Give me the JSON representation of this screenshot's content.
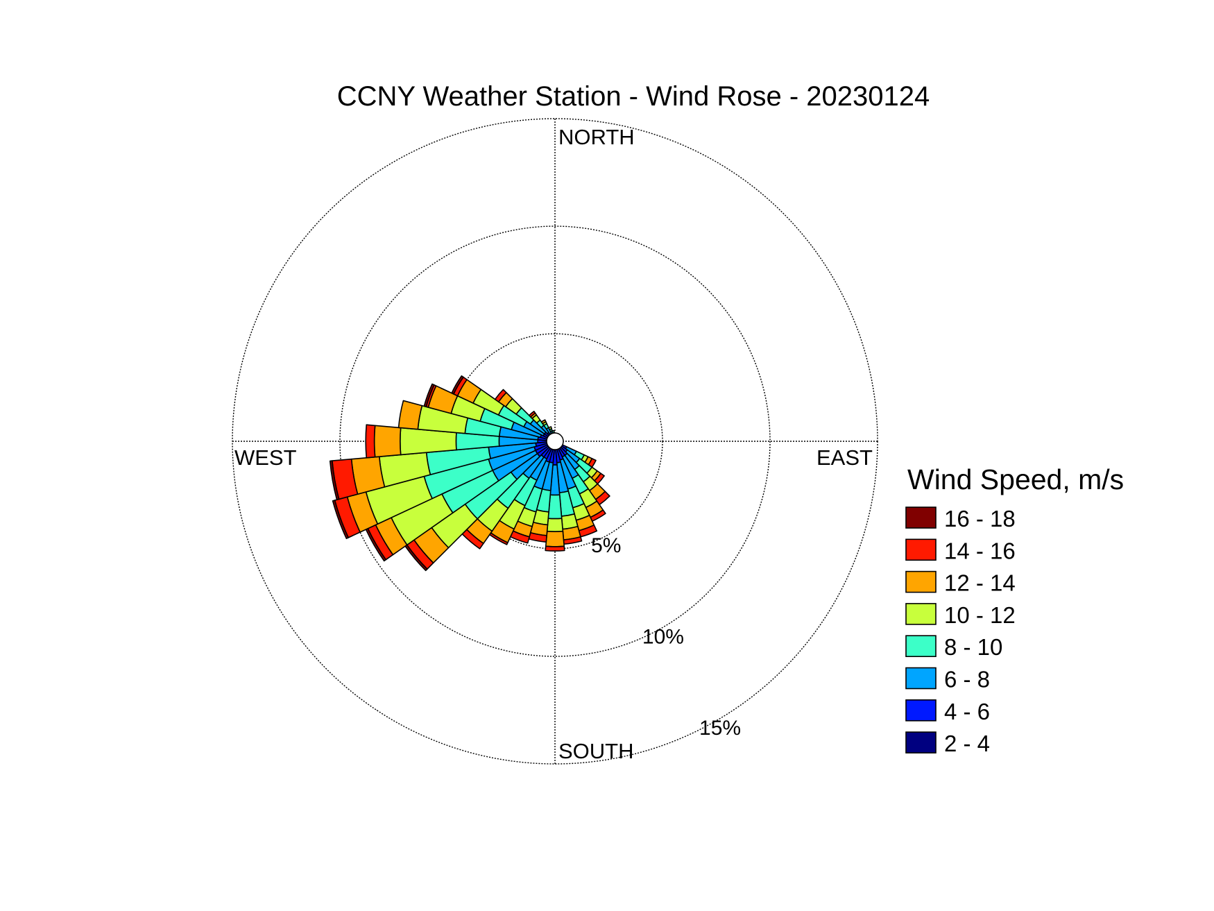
{
  "chart_data": {
    "type": "wind_rose",
    "title": "CCNY Weather Station - Wind Rose - 20230124",
    "direction_labels": {
      "north": "NORTH",
      "east": "EAST",
      "south": "SOUTH",
      "west": "WEST"
    },
    "radial_unit": "%",
    "radial_max": 15,
    "rings": [
      {
        "value": 5,
        "label": "5%"
      },
      {
        "value": 10,
        "label": "10%"
      },
      {
        "value": 15,
        "label": "15%"
      }
    ],
    "grid": true,
    "legend": {
      "title": "Wind Speed, m/s",
      "placement": "right",
      "bins": [
        {
          "label": "16 - 18",
          "color": "#800000"
        },
        {
          "label": "14 - 16",
          "color": "#ff1a00"
        },
        {
          "label": "12 - 14",
          "color": "#ffa500"
        },
        {
          "label": "10 - 12",
          "color": "#c8ff3c"
        },
        {
          "label": "8 - 10",
          "color": "#3cffc8"
        },
        {
          "label": "6 - 8",
          "color": "#00a5ff"
        },
        {
          "label": "4 - 6",
          "color": "#0019ff"
        },
        {
          "label": "2 - 4",
          "color": "#000080"
        }
      ]
    },
    "speed_bins_low_to_high": [
      "2 - 4",
      "4 - 6",
      "6 - 8",
      "8 - 10",
      "10 - 12",
      "12 - 14",
      "14 - 16",
      "16 - 18"
    ],
    "sector_width_deg": 10,
    "sectors": [
      {
        "direction_deg": 120,
        "cumulative_pct": [
          0.3,
          0.6,
          1.1,
          1.5,
          1.7,
          1.9,
          2.1,
          2.1
        ]
      },
      {
        "direction_deg": 130,
        "cumulative_pct": [
          0.3,
          0.7,
          1.4,
          2.1,
          2.4,
          2.6,
          2.8,
          2.8
        ]
      },
      {
        "direction_deg": 140,
        "cumulative_pct": [
          0.3,
          0.8,
          1.6,
          2.3,
          2.8,
          3.3,
          3.6,
          3.6
        ]
      },
      {
        "direction_deg": 150,
        "cumulative_pct": [
          0.3,
          0.8,
          1.9,
          2.7,
          3.4,
          3.9,
          4.1,
          4.1
        ]
      },
      {
        "direction_deg": 160,
        "cumulative_pct": [
          0.3,
          0.9,
          2.3,
          3.2,
          3.8,
          4.3,
          4.6,
          4.6
        ]
      },
      {
        "direction_deg": 170,
        "cumulative_pct": [
          0.3,
          1.0,
          2.4,
          3.5,
          4.1,
          4.6,
          4.8,
          4.8
        ]
      },
      {
        "direction_deg": 180,
        "cumulative_pct": [
          0.3,
          1.1,
          2.5,
          3.6,
          4.2,
          4.9,
          5.1,
          5.1
        ]
      },
      {
        "direction_deg": 190,
        "cumulative_pct": [
          0.3,
          1.0,
          2.3,
          3.3,
          3.9,
          4.4,
          4.7,
          4.7
        ]
      },
      {
        "direction_deg": 200,
        "cumulative_pct": [
          0.3,
          1.0,
          2.3,
          3.4,
          4.1,
          4.6,
          4.9,
          4.9
        ]
      },
      {
        "direction_deg": 210,
        "cumulative_pct": [
          0.3,
          0.9,
          2.0,
          3.3,
          4.5,
          5.2,
          5.3,
          5.3
        ]
      },
      {
        "direction_deg": 220,
        "cumulative_pct": [
          0.3,
          0.9,
          2.1,
          3.8,
          5.1,
          5.8,
          6.1,
          6.1
        ]
      },
      {
        "direction_deg": 230,
        "cumulative_pct": [
          0.3,
          1.0,
          2.5,
          5.1,
          7.0,
          8.0,
          8.4,
          8.5
        ]
      },
      {
        "direction_deg": 240,
        "cumulative_pct": [
          0.3,
          1.0,
          3.2,
          5.8,
          8.4,
          9.2,
          9.6,
          9.7
        ]
      },
      {
        "direction_deg": 250,
        "cumulative_pct": [
          0.3,
          1.0,
          3.2,
          6.3,
          9.1,
          10.0,
          10.6,
          10.7
        ]
      },
      {
        "direction_deg": 260,
        "cumulative_pct": [
          0.3,
          0.9,
          3.1,
          6.0,
          8.2,
          9.5,
          10.4,
          10.5
        ]
      },
      {
        "direction_deg": 270,
        "cumulative_pct": [
          0.3,
          0.8,
          2.6,
          4.6,
          7.2,
          8.4,
          8.8,
          8.8
        ]
      },
      {
        "direction_deg": 280,
        "cumulative_pct": [
          0.3,
          0.8,
          2.6,
          4.2,
          6.4,
          7.3,
          7.3,
          7.3
        ]
      },
      {
        "direction_deg": 290,
        "cumulative_pct": [
          0.3,
          0.7,
          2.1,
          3.6,
          5.0,
          6.1,
          6.2,
          6.3
        ]
      },
      {
        "direction_deg": 300,
        "cumulative_pct": [
          0.3,
          0.6,
          1.6,
          2.9,
          4.2,
          5.0,
          5.2,
          5.3
        ]
      },
      {
        "direction_deg": 310,
        "cumulative_pct": [
          0.3,
          0.6,
          1.4,
          2.2,
          2.8,
          3.2,
          3.4,
          3.4
        ]
      },
      {
        "direction_deg": 320,
        "cumulative_pct": [
          0.3,
          0.5,
          0.9,
          1.2,
          1.5,
          1.6,
          1.7,
          1.7
        ]
      },
      {
        "direction_deg": 330,
        "cumulative_pct": [
          0.3,
          0.4,
          0.7,
          0.9,
          1.0,
          1.1,
          1.1,
          1.1
        ]
      },
      {
        "direction_deg": 340,
        "cumulative_pct": [
          0.3,
          0.4,
          0.5,
          0.6,
          0.7,
          0.7,
          0.7,
          0.7
        ]
      },
      {
        "direction_deg": 350,
        "cumulative_pct": [
          0.3,
          0.4,
          0.4,
          0.5,
          0.5,
          0.5,
          0.5,
          0.5
        ]
      }
    ]
  }
}
